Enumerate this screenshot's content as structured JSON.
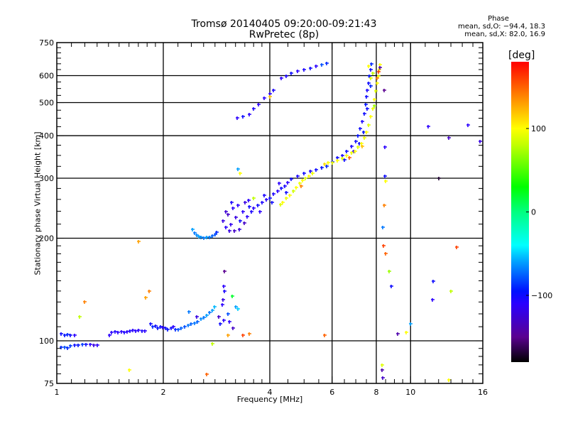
{
  "title": {
    "line1": "Tromsø 20140405 09:20:00-09:21:43",
    "line2": "RwPretec (8p)"
  },
  "phase_stats": {
    "heading": "Phase",
    "o_line": "mean, sd,O: −94.4, 18.3",
    "x_line": "mean, sd,X:  82.0, 16.9"
  },
  "colorbar": {
    "label": "[deg]",
    "range": [
      -180,
      180
    ],
    "ticks": [
      {
        "v": 100,
        "label": "100"
      },
      {
        "v": 0,
        "label": "0"
      },
      {
        "v": -100,
        "label": "−100"
      }
    ],
    "stops": [
      [
        -180,
        "#000000"
      ],
      [
        -150,
        "#5a0090"
      ],
      [
        -110,
        "#2a00ff"
      ],
      [
        -95,
        "#0010ff"
      ],
      [
        -60,
        "#00a0ff"
      ],
      [
        -40,
        "#00ffff"
      ],
      [
        0,
        "#00ff80"
      ],
      [
        30,
        "#00ff00"
      ],
      [
        80,
        "#c0ff00"
      ],
      [
        100,
        "#ffff00"
      ],
      [
        140,
        "#ff8000"
      ],
      [
        180,
        "#ff0000"
      ]
    ]
  },
  "chart_data": {
    "type": "scatter",
    "xlabel": "Frequency [MHz]",
    "ylabel": "Stationary phase Virtual Height [km]",
    "xscale": "log",
    "yscale": "log",
    "xlim": [
      1,
      16
    ],
    "ylim": [
      75,
      750
    ],
    "xticks": [
      {
        "v": 1,
        "label": "1"
      },
      {
        "v": 2,
        "label": "2"
      },
      {
        "v": 4,
        "label": "4"
      },
      {
        "v": 6,
        "label": "6"
      },
      {
        "v": 8,
        "label": "8"
      },
      {
        "v": 10,
        "label": "10"
      },
      {
        "v": 16,
        "label": "16"
      }
    ],
    "yticks": [
      {
        "v": 75,
        "label": "75"
      },
      {
        "v": 100,
        "label": "100"
      },
      {
        "v": 200,
        "label": "200"
      },
      {
        "v": 300,
        "label": "300"
      },
      {
        "v": 400,
        "label": "400"
      },
      {
        "v": 500,
        "label": "500"
      },
      {
        "v": 600,
        "label": "600"
      },
      {
        "v": 750,
        "label": "750"
      }
    ],
    "xgrid": [
      2,
      4,
      6,
      8,
      10
    ],
    "ygrid": [
      100,
      200,
      300,
      400,
      500,
      600
    ],
    "xminor": [
      1.1,
      1.2,
      1.3,
      1.4,
      1.5,
      1.6,
      1.7,
      1.8,
      1.9,
      2.2,
      2.4,
      2.6,
      2.8,
      3,
      3.2,
      3.4,
      3.6,
      3.8,
      4.5,
      5,
      5.5,
      6.5,
      7,
      7.5,
      8.5,
      9,
      9.5,
      11,
      12,
      13,
      14,
      15
    ],
    "yminor": [
      80,
      85,
      90,
      95,
      110,
      120,
      130,
      140,
      150,
      160,
      170,
      180,
      190,
      220,
      240,
      260,
      280,
      325,
      350,
      375,
      425,
      450,
      475,
      525,
      550,
      575,
      625,
      650,
      675,
      700,
      725
    ],
    "color_variable": "Phase [deg]",
    "points": [
      [
        1.03,
        96,
        -90
      ],
      [
        1.05,
        96,
        -80
      ],
      [
        1.07,
        95.5,
        -90
      ],
      [
        1.09,
        96.5,
        -85
      ],
      [
        1.12,
        97,
        -100
      ],
      [
        1.15,
        97,
        -95
      ],
      [
        1.18,
        97.5,
        -85
      ],
      [
        1.21,
        97.5,
        -100
      ],
      [
        1.24,
        97.5,
        -110
      ],
      [
        1.27,
        97,
        -120
      ],
      [
        1.3,
        97,
        -110
      ],
      [
        1.03,
        105,
        -100
      ],
      [
        1.05,
        104,
        -95
      ],
      [
        1.07,
        104.5,
        -90
      ],
      [
        1.09,
        104,
        -100
      ],
      [
        1.12,
        104,
        -110
      ],
      [
        1.41,
        104,
        -110
      ],
      [
        1.43,
        106,
        -110
      ],
      [
        1.46,
        106.5,
        -105
      ],
      [
        1.49,
        106,
        -110
      ],
      [
        1.52,
        106.5,
        -110
      ],
      [
        1.55,
        106,
        -105
      ],
      [
        1.58,
        106.5,
        -110
      ],
      [
        1.61,
        107,
        -105
      ],
      [
        1.64,
        107.5,
        -110
      ],
      [
        1.67,
        107,
        -108
      ],
      [
        1.7,
        107.5,
        -110
      ],
      [
        1.74,
        107,
        -105
      ],
      [
        1.77,
        107,
        -110
      ],
      [
        1.84,
        112,
        -100
      ],
      [
        1.87,
        110,
        -90
      ],
      [
        1.9,
        110.5,
        -100
      ],
      [
        1.93,
        109,
        -95
      ],
      [
        1.96,
        110,
        -100
      ],
      [
        1.99,
        109.5,
        -110
      ],
      [
        2.03,
        109,
        -100
      ],
      [
        2.06,
        108,
        -95
      ],
      [
        2.1,
        109,
        -100
      ],
      [
        2.13,
        110,
        -110
      ],
      [
        2.16,
        108,
        -90
      ],
      [
        2.2,
        108,
        -80
      ],
      [
        2.25,
        109,
        -75
      ],
      [
        2.3,
        110,
        -80
      ],
      [
        2.35,
        111,
        -70
      ],
      [
        2.4,
        112,
        -75
      ],
      [
        2.45,
        113,
        -70
      ],
      [
        2.5,
        114,
        -75
      ],
      [
        2.55,
        116,
        -65
      ],
      [
        2.6,
        117,
        -70
      ],
      [
        2.65,
        119,
        -60
      ],
      [
        2.7,
        121,
        -70
      ],
      [
        2.75,
        123,
        -60
      ],
      [
        2.79,
        126,
        -55
      ],
      [
        2.36,
        122,
        -70
      ],
      [
        2.48,
        118,
        -120
      ],
      [
        2.87,
        118,
        -130
      ],
      [
        2.9,
        112,
        -100
      ],
      [
        2.96,
        115,
        -110
      ],
      [
        3.08,
        114,
        -110
      ],
      [
        3.04,
        120,
        -80
      ],
      [
        3.2,
        126,
        -60
      ],
      [
        3.25,
        124,
        -50
      ],
      [
        3.13,
        135,
        20
      ],
      [
        3.14,
        109,
        -130
      ],
      [
        2.97,
        160,
        -150
      ],
      [
        2.96,
        145,
        -110
      ],
      [
        2.97,
        140,
        -105
      ],
      [
        2.95,
        132,
        -120
      ],
      [
        2.94,
        128,
        -110
      ],
      [
        2.42,
        212,
        -60
      ],
      [
        2.45,
        207,
        -70
      ],
      [
        2.48,
        204,
        -65
      ],
      [
        2.52,
        202,
        -60
      ],
      [
        2.56,
        201,
        -65
      ],
      [
        2.6,
        200.5,
        -70
      ],
      [
        2.65,
        201,
        -60
      ],
      [
        2.7,
        201.5,
        -70
      ],
      [
        2.75,
        203,
        -75
      ],
      [
        2.8,
        205,
        -80
      ],
      [
        2.83,
        208,
        -90
      ],
      [
        2.95,
        225,
        -120
      ],
      [
        3.0,
        215,
        -110
      ],
      [
        3.05,
        235,
        -130
      ],
      [
        3.1,
        220,
        -115
      ],
      [
        3.15,
        245,
        -110
      ],
      [
        3.2,
        230,
        -120
      ],
      [
        3.25,
        250,
        -110
      ],
      [
        3.3,
        225,
        -100
      ],
      [
        3.35,
        240,
        -110
      ],
      [
        3.4,
        255,
        -120
      ],
      [
        3.45,
        232,
        -110
      ],
      [
        3.5,
        248,
        -100
      ],
      [
        3.0,
        240,
        -125
      ],
      [
        3.08,
        210,
        -120
      ],
      [
        3.12,
        255,
        -105
      ],
      [
        3.18,
        210,
        -130
      ],
      [
        3.28,
        212,
        -120
      ],
      [
        3.38,
        222,
        -130
      ],
      [
        3.48,
        258,
        -110
      ],
      [
        3.55,
        240,
        -105
      ],
      [
        3.6,
        245,
        -110
      ],
      [
        3.7,
        250,
        -100
      ],
      [
        3.8,
        255,
        -105
      ],
      [
        3.9,
        260,
        -110
      ],
      [
        4.0,
        262,
        -100
      ],
      [
        4.1,
        270,
        -105
      ],
      [
        4.2,
        275,
        -110
      ],
      [
        4.3,
        280,
        -100
      ],
      [
        4.4,
        285,
        -105
      ],
      [
        4.5,
        292,
        -110
      ],
      [
        4.6,
        298,
        -100
      ],
      [
        4.8,
        305,
        -105
      ],
      [
        5.0,
        310,
        -100
      ],
      [
        5.2,
        315,
        -105
      ],
      [
        5.4,
        318,
        -100
      ],
      [
        5.6,
        322,
        -95
      ],
      [
        5.8,
        326,
        -90
      ],
      [
        3.75,
        240,
        -110
      ],
      [
        3.85,
        268,
        -105
      ],
      [
        4.05,
        255,
        -100
      ],
      [
        4.25,
        290,
        -110
      ],
      [
        4.45,
        272,
        -100
      ],
      [
        6.0,
        335,
        -95
      ],
      [
        6.2,
        345,
        -100
      ],
      [
        6.4,
        350,
        -105
      ],
      [
        6.6,
        360,
        -100
      ],
      [
        6.8,
        372,
        -105
      ],
      [
        7.0,
        385,
        -100
      ],
      [
        7.1,
        400,
        -95
      ],
      [
        7.2,
        420,
        -100
      ],
      [
        7.3,
        440,
        -105
      ],
      [
        7.38,
        465,
        -100
      ],
      [
        7.45,
        495,
        -95
      ],
      [
        7.5,
        520,
        -100
      ],
      [
        7.55,
        545,
        -105
      ],
      [
        7.6,
        570,
        -100
      ],
      [
        7.65,
        600,
        -95
      ],
      [
        7.7,
        625,
        -100
      ],
      [
        7.75,
        650,
        -90
      ],
      [
        6.5,
        340,
        -100
      ],
      [
        6.9,
        360,
        -110
      ],
      [
        7.15,
        380,
        -100
      ],
      [
        7.35,
        410,
        -95
      ],
      [
        7.55,
        480,
        -100
      ],
      [
        7.7,
        560,
        -90
      ],
      [
        7.8,
        610,
        80
      ],
      [
        7.72,
        590,
        90
      ],
      [
        7.6,
        640,
        100
      ],
      [
        4.28,
        251,
        90
      ],
      [
        4.35,
        255,
        100
      ],
      [
        4.45,
        262,
        95
      ],
      [
        4.55,
        268,
        100
      ],
      [
        4.65,
        275,
        85
      ],
      [
        4.75,
        282,
        100
      ],
      [
        4.85,
        290,
        95
      ],
      [
        4.95,
        296,
        100
      ],
      [
        5.05,
        300,
        90
      ],
      [
        5.15,
        305,
        100
      ],
      [
        5.28,
        310,
        95
      ],
      [
        4.9,
        285,
        140
      ],
      [
        5.7,
        330,
        110
      ],
      [
        5.85,
        333,
        100
      ],
      [
        6.0,
        334,
        95
      ],
      [
        6.2,
        338,
        100
      ],
      [
        6.4,
        343,
        90
      ],
      [
        6.6,
        350,
        100
      ],
      [
        6.8,
        356,
        95
      ],
      [
        6.96,
        360,
        100
      ],
      [
        7.1,
        370,
        90
      ],
      [
        7.25,
        380,
        100
      ],
      [
        7.4,
        395,
        95
      ],
      [
        7.5,
        410,
        100
      ],
      [
        7.6,
        430,
        90
      ],
      [
        7.7,
        455,
        100
      ],
      [
        7.8,
        480,
        95
      ],
      [
        7.88,
        510,
        100
      ],
      [
        7.95,
        540,
        90
      ],
      [
        8.02,
        570,
        100
      ],
      [
        8.1,
        600,
        95
      ],
      [
        8.15,
        625,
        110
      ],
      [
        8.2,
        645,
        100
      ],
      [
        6.7,
        345,
        150
      ],
      [
        7.3,
        372,
        120
      ],
      [
        7.9,
        490,
        70
      ],
      [
        8.05,
        590,
        140
      ],
      [
        8.12,
        615,
        160
      ],
      [
        8.18,
        635,
        -140
      ],
      [
        3.24,
        450,
        -110
      ],
      [
        3.35,
        455,
        -100
      ],
      [
        3.5,
        462,
        -110
      ],
      [
        3.6,
        480,
        -105
      ],
      [
        3.72,
        495,
        -110
      ],
      [
        3.85,
        515,
        -110
      ],
      [
        4.0,
        530,
        -110
      ],
      [
        4.1,
        545,
        -105
      ],
      [
        4.3,
        590,
        -110
      ],
      [
        4.45,
        600,
        -105
      ],
      [
        4.6,
        610,
        -100
      ],
      [
        4.8,
        618,
        -110
      ],
      [
        5.0,
        625,
        -105
      ],
      [
        5.2,
        630,
        -100
      ],
      [
        5.4,
        640,
        -110
      ],
      [
        5.6,
        645,
        -80
      ],
      [
        5.8,
        652,
        -90
      ],
      [
        4.0,
        520,
        120
      ],
      [
        8.4,
        545,
        -150
      ],
      [
        8.45,
        370,
        -110
      ],
      [
        8.45,
        305,
        -100
      ],
      [
        8.5,
        295,
        100
      ],
      [
        8.4,
        250,
        140
      ],
      [
        8.35,
        215,
        -70
      ],
      [
        8.38,
        190,
        160
      ],
      [
        8.5,
        180,
        150
      ],
      [
        8.7,
        160,
        70
      ],
      [
        8.8,
        145,
        -100
      ],
      [
        9.2,
        105,
        -140
      ],
      [
        9.7,
        106,
        100
      ],
      [
        10.0,
        112,
        -60
      ],
      [
        8.3,
        82,
        -140
      ],
      [
        8.35,
        78,
        -130
      ],
      [
        8.3,
        85,
        90
      ],
      [
        11.2,
        425,
        -110
      ],
      [
        12.8,
        395,
        -130
      ],
      [
        14.5,
        430,
        -110
      ],
      [
        15.7,
        385,
        -120
      ],
      [
        12.0,
        300,
        -170
      ],
      [
        13.5,
        188,
        160
      ],
      [
        11.6,
        150,
        -100
      ],
      [
        11.5,
        132,
        -110
      ],
      [
        13.0,
        140,
        80
      ],
      [
        12.8,
        77,
        100
      ],
      [
        1.2,
        130,
        140
      ],
      [
        1.16,
        118,
        80
      ],
      [
        1.7,
        196,
        130
      ],
      [
        1.82,
        140,
        140
      ],
      [
        1.78,
        134,
        130
      ],
      [
        1.6,
        82,
        100
      ],
      [
        2.65,
        80,
        150
      ],
      [
        2.75,
        98,
        80
      ],
      [
        3.05,
        104,
        130
      ],
      [
        3.35,
        104,
        160
      ],
      [
        5.7,
        104,
        150
      ],
      [
        3.5,
        105,
        140
      ],
      [
        3.25,
        320,
        -60
      ],
      [
        3.3,
        310,
        100
      ],
      [
        3.6,
        262,
        80
      ]
    ]
  }
}
